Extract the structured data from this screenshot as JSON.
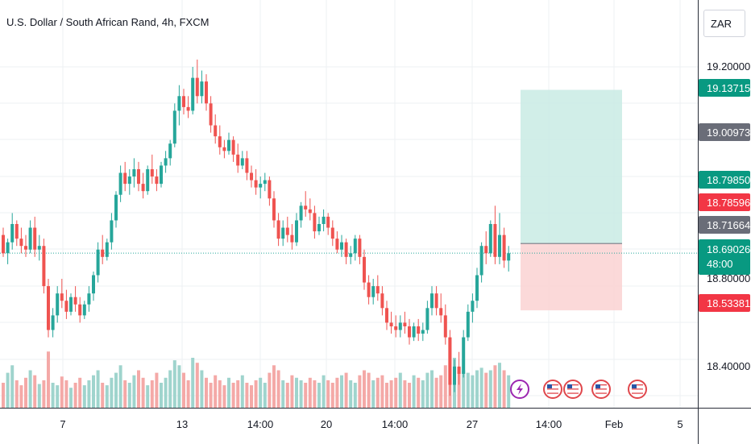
{
  "chart_title": "U.S. Dollar / South African Rand, 4h, FXCM",
  "currency": "ZAR",
  "colors": {
    "up": "#26a69a",
    "down": "#ef5350",
    "vol_up": "#9fd4cd",
    "vol_down": "#f4a9a7",
    "target_zone": "#c9ebe4",
    "stop_zone": "#fbd5d5",
    "current_line": "#26a69a",
    "badge_green": "#089981",
    "badge_red": "#f23645",
    "badge_gray": "#6a6d78",
    "event_purple": "#9c27b0"
  },
  "price_axis": {
    "ticks": [
      "19.20000",
      "18.80000",
      "18.40000"
    ],
    "badges": [
      {
        "label": "19.13715",
        "kind": "green"
      },
      {
        "label": "19.00973",
        "kind": "gray"
      },
      {
        "label": "18.79850",
        "kind": "green"
      },
      {
        "label": "18.78596",
        "kind": "red"
      },
      {
        "label": "18.71664",
        "kind": "gray"
      },
      {
        "label": "18.53381",
        "kind": "red"
      }
    ],
    "current": {
      "price": "18.69026",
      "countdown": "48:00"
    }
  },
  "time_axis": {
    "ticks": [
      "7",
      "13",
      "14:00",
      "20",
      "14:00",
      "27",
      "14:00",
      "Feb",
      "5"
    ]
  },
  "position_tool": {
    "entry": 18.71664,
    "target": 19.13715,
    "stop": 18.53381
  },
  "events": [
    "lightning-event-icon",
    "us-flag-icon",
    "us-flag-icon",
    "us-flag-icon",
    "us-flag-icon"
  ],
  "chart_data": {
    "type": "candlestick",
    "title": "U.S. Dollar / South African Rand, 4h, FXCM",
    "ylim": [
      18.2,
      19.3
    ],
    "current_price": 18.69026,
    "candles": [
      [
        18.74,
        18.76,
        18.68,
        18.69
      ],
      [
        18.69,
        18.73,
        18.66,
        18.72
      ],
      [
        18.72,
        18.8,
        18.7,
        18.77
      ],
      [
        18.77,
        18.78,
        18.71,
        18.73
      ],
      [
        18.73,
        18.76,
        18.69,
        18.71
      ],
      [
        18.71,
        18.74,
        18.68,
        18.7
      ],
      [
        18.7,
        18.78,
        18.69,
        18.76
      ],
      [
        18.76,
        18.79,
        18.68,
        18.7
      ],
      [
        18.7,
        18.74,
        18.67,
        18.71
      ],
      [
        18.71,
        18.73,
        18.58,
        18.6
      ],
      [
        18.6,
        18.62,
        18.46,
        18.48
      ],
      [
        18.48,
        18.54,
        18.46,
        18.52
      ],
      [
        18.52,
        18.6,
        18.5,
        18.58
      ],
      [
        18.58,
        18.62,
        18.54,
        18.56
      ],
      [
        18.56,
        18.59,
        18.51,
        18.53
      ],
      [
        18.53,
        18.58,
        18.52,
        18.57
      ],
      [
        18.57,
        18.6,
        18.53,
        18.55
      ],
      [
        18.55,
        18.57,
        18.5,
        18.52
      ],
      [
        18.52,
        18.56,
        18.51,
        18.55
      ],
      [
        18.55,
        18.6,
        18.53,
        18.58
      ],
      [
        18.58,
        18.64,
        18.56,
        18.63
      ],
      [
        18.63,
        18.72,
        18.61,
        18.7
      ],
      [
        18.7,
        18.74,
        18.66,
        18.68
      ],
      [
        18.68,
        18.73,
        18.67,
        18.72
      ],
      [
        18.72,
        18.8,
        18.7,
        18.78
      ],
      [
        18.78,
        18.86,
        18.76,
        18.85
      ],
      [
        18.85,
        18.93,
        18.83,
        18.91
      ],
      [
        18.91,
        18.94,
        18.86,
        18.88
      ],
      [
        18.88,
        18.92,
        18.85,
        18.9
      ],
      [
        18.9,
        18.95,
        18.87,
        18.92
      ],
      [
        18.92,
        18.94,
        18.86,
        18.88
      ],
      [
        18.88,
        18.91,
        18.84,
        18.86
      ],
      [
        18.86,
        18.93,
        18.85,
        18.92
      ],
      [
        18.92,
        18.96,
        18.88,
        18.9
      ],
      [
        18.9,
        18.92,
        18.86,
        18.88
      ],
      [
        18.88,
        18.94,
        18.87,
        18.93
      ],
      [
        18.93,
        18.97,
        18.91,
        18.95
      ],
      [
        18.95,
        19.0,
        18.93,
        18.99
      ],
      [
        18.99,
        19.1,
        18.98,
        19.08
      ],
      [
        19.08,
        19.15,
        19.04,
        19.12
      ],
      [
        19.12,
        19.14,
        19.07,
        19.09
      ],
      [
        19.09,
        19.12,
        19.06,
        19.08
      ],
      [
        19.08,
        19.2,
        19.07,
        19.17
      ],
      [
        19.17,
        19.22,
        19.1,
        19.12
      ],
      [
        19.12,
        19.19,
        19.1,
        19.16
      ],
      [
        19.16,
        19.18,
        19.08,
        19.1
      ],
      [
        19.1,
        19.12,
        19.02,
        19.04
      ],
      [
        19.04,
        19.07,
        18.99,
        19.01
      ],
      [
        19.01,
        19.04,
        18.96,
        18.98
      ],
      [
        18.98,
        19.0,
        18.95,
        18.97
      ],
      [
        18.97,
        19.02,
        18.96,
        19.0
      ],
      [
        19.0,
        19.01,
        18.94,
        18.96
      ],
      [
        18.96,
        18.99,
        18.91,
        18.93
      ],
      [
        18.93,
        18.97,
        18.92,
        18.95
      ],
      [
        18.95,
        18.97,
        18.89,
        18.91
      ],
      [
        18.91,
        18.93,
        18.87,
        18.89
      ],
      [
        18.89,
        18.92,
        18.85,
        18.87
      ],
      [
        18.87,
        18.9,
        18.84,
        18.88
      ],
      [
        18.88,
        18.91,
        18.86,
        18.89
      ],
      [
        18.89,
        18.9,
        18.82,
        18.84
      ],
      [
        18.84,
        18.86,
        18.76,
        18.78
      ],
      [
        18.78,
        18.8,
        18.71,
        18.73
      ],
      [
        18.73,
        18.78,
        18.71,
        18.76
      ],
      [
        18.76,
        18.79,
        18.72,
        18.74
      ],
      [
        18.74,
        18.77,
        18.7,
        18.72
      ],
      [
        18.72,
        18.8,
        18.71,
        18.78
      ],
      [
        18.78,
        18.83,
        18.76,
        18.82
      ],
      [
        18.82,
        18.86,
        18.79,
        18.81
      ],
      [
        18.81,
        18.84,
        18.78,
        18.8
      ],
      [
        18.8,
        18.82,
        18.73,
        18.75
      ],
      [
        18.75,
        18.79,
        18.74,
        18.77
      ],
      [
        18.77,
        18.81,
        18.75,
        18.79
      ],
      [
        18.79,
        18.8,
        18.74,
        18.76
      ],
      [
        18.76,
        18.78,
        18.71,
        18.73
      ],
      [
        18.73,
        18.75,
        18.69,
        18.7
      ],
      [
        18.7,
        18.74,
        18.68,
        18.72
      ],
      [
        18.72,
        18.73,
        18.66,
        18.68
      ],
      [
        18.68,
        18.71,
        18.66,
        18.69
      ],
      [
        18.69,
        18.74,
        18.67,
        18.73
      ],
      [
        18.73,
        18.74,
        18.66,
        18.68
      ],
      [
        18.68,
        18.7,
        18.59,
        18.61
      ],
      [
        18.61,
        18.63,
        18.55,
        18.57
      ],
      [
        18.57,
        18.62,
        18.55,
        18.6
      ],
      [
        18.6,
        18.63,
        18.56,
        18.58
      ],
      [
        18.58,
        18.6,
        18.52,
        18.54
      ],
      [
        18.54,
        18.56,
        18.48,
        18.5
      ],
      [
        18.5,
        18.53,
        18.47,
        18.49
      ],
      [
        18.49,
        18.52,
        18.46,
        18.48
      ],
      [
        18.48,
        18.52,
        18.46,
        18.5
      ],
      [
        18.5,
        18.53,
        18.47,
        18.49
      ],
      [
        18.49,
        18.51,
        18.44,
        18.46
      ],
      [
        18.46,
        18.5,
        18.45,
        18.49
      ],
      [
        18.49,
        18.51,
        18.45,
        18.47
      ],
      [
        18.47,
        18.5,
        18.45,
        18.48
      ],
      [
        18.48,
        18.56,
        18.47,
        18.54
      ],
      [
        18.54,
        18.6,
        18.52,
        18.58
      ],
      [
        18.58,
        18.6,
        18.52,
        18.54
      ],
      [
        18.54,
        18.58,
        18.5,
        18.52
      ],
      [
        18.52,
        18.55,
        18.44,
        18.46
      ],
      [
        18.46,
        18.48,
        18.3,
        18.33
      ],
      [
        18.33,
        18.4,
        18.31,
        18.38
      ],
      [
        18.38,
        18.42,
        18.33,
        18.36
      ],
      [
        18.36,
        18.48,
        18.35,
        18.46
      ],
      [
        18.46,
        18.55,
        18.45,
        18.53
      ],
      [
        18.53,
        18.58,
        18.5,
        18.56
      ],
      [
        18.56,
        18.65,
        18.54,
        18.63
      ],
      [
        18.63,
        18.72,
        18.61,
        18.71
      ],
      [
        18.71,
        18.75,
        18.66,
        18.69
      ],
      [
        18.69,
        18.78,
        18.68,
        18.77
      ],
      [
        18.77,
        18.82,
        18.66,
        18.68
      ],
      [
        18.68,
        18.8,
        18.66,
        18.74
      ],
      [
        18.74,
        18.76,
        18.65,
        18.67
      ],
      [
        18.67,
        18.71,
        18.64,
        18.69
      ]
    ],
    "volume": [
      20,
      28,
      34,
      22,
      18,
      24,
      30,
      26,
      19,
      22,
      45,
      20,
      18,
      25,
      22,
      16,
      20,
      24,
      18,
      22,
      26,
      30,
      20,
      18,
      24,
      28,
      34,
      22,
      20,
      26,
      30,
      24,
      18,
      22,
      28,
      20,
      24,
      30,
      38,
      34,
      28,
      22,
      40,
      36,
      30,
      24,
      20,
      26,
      22,
      18,
      24,
      20,
      22,
      26,
      20,
      18,
      22,
      24,
      20,
      28,
      34,
      30,
      22,
      20,
      26,
      24,
      22,
      20,
      24,
      22,
      20,
      26,
      22,
      20,
      24,
      26,
      28,
      22,
      20,
      26,
      30,
      28,
      22,
      24,
      26,
      20,
      22,
      24,
      28,
      22,
      20,
      26,
      24,
      22,
      28,
      30,
      24,
      26,
      34,
      56,
      40,
      32,
      30,
      28,
      26,
      30,
      32,
      28,
      30,
      34,
      36,
      30,
      26
    ]
  }
}
